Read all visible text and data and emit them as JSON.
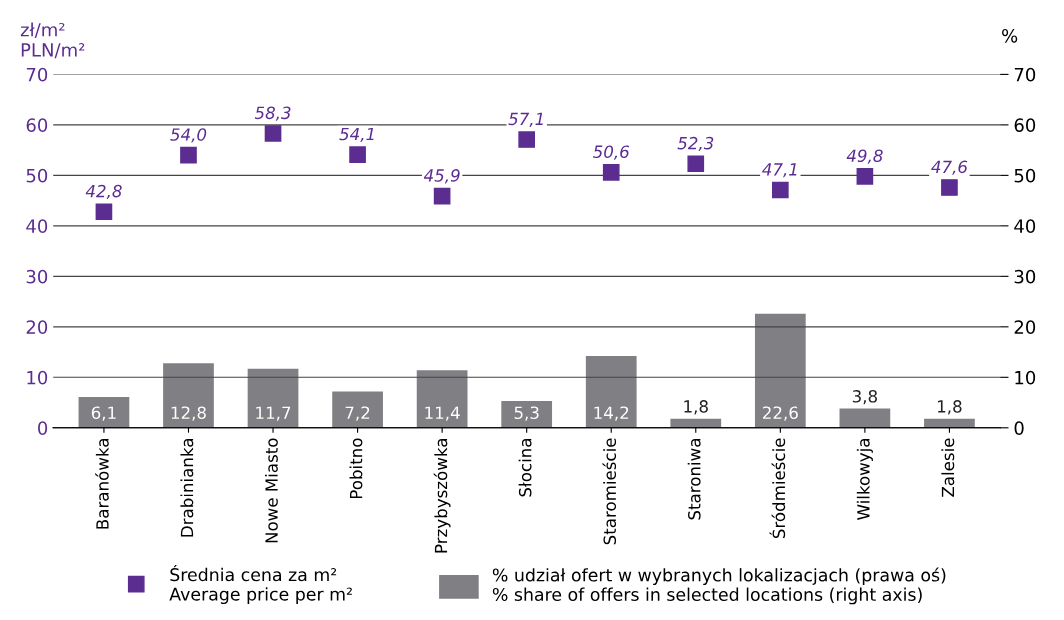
{
  "chart_data": {
    "type": "bar",
    "ylabel": "zł/m²\nPLN/m²",
    "y2label": "%",
    "categories": [
      "Baranówka",
      "Drabinianka",
      "Nowe Miasto",
      "Pobitno",
      "Przybyszówka",
      "Słocina",
      "Staromieście",
      "Staroniwa",
      "Śródmieście",
      "Wilkowyja",
      "Zalesie"
    ],
    "series": [
      {
        "name": "Średnia cena za m²\nAverage price per m²",
        "type": "scatter",
        "color": "#5c2d91",
        "marker": "square",
        "values": [
          42.8,
          54.0,
          58.3,
          54.1,
          45.9,
          57.1,
          50.6,
          52.3,
          47.1,
          49.8,
          47.6
        ],
        "value_labels": [
          "42,8",
          "54,0",
          "58,3",
          "54,1",
          "45,9",
          "57,1",
          "50,6",
          "52,3",
          "47,1",
          "49,8",
          "47,6"
        ]
      },
      {
        "name": "% udział ofert w wybranych lokalizacjach (prawa oś)\n% share of offers in selected locations (right axis)",
        "axis": "y2",
        "color": "#807f83",
        "values": [
          6.1,
          12.8,
          11.7,
          7.2,
          11.4,
          5.3,
          14.2,
          1.8,
          22.6,
          3.8,
          1.8
        ],
        "value_labels": [
          "6,1",
          "12,8",
          "11,7",
          "7,2",
          "11,4",
          "5,3",
          "14,2",
          "1,8",
          "22,6",
          "3,8",
          "1,8"
        ]
      }
    ],
    "ylim": [
      0,
      70
    ],
    "yticks": [
      0,
      10,
      20,
      30,
      40,
      50,
      60,
      70
    ],
    "y2lim": [
      0,
      70
    ],
    "y2ticks": [
      0,
      10,
      20,
      30,
      40,
      50,
      60,
      70
    ],
    "grid": "y",
    "legend": "bottom"
  }
}
